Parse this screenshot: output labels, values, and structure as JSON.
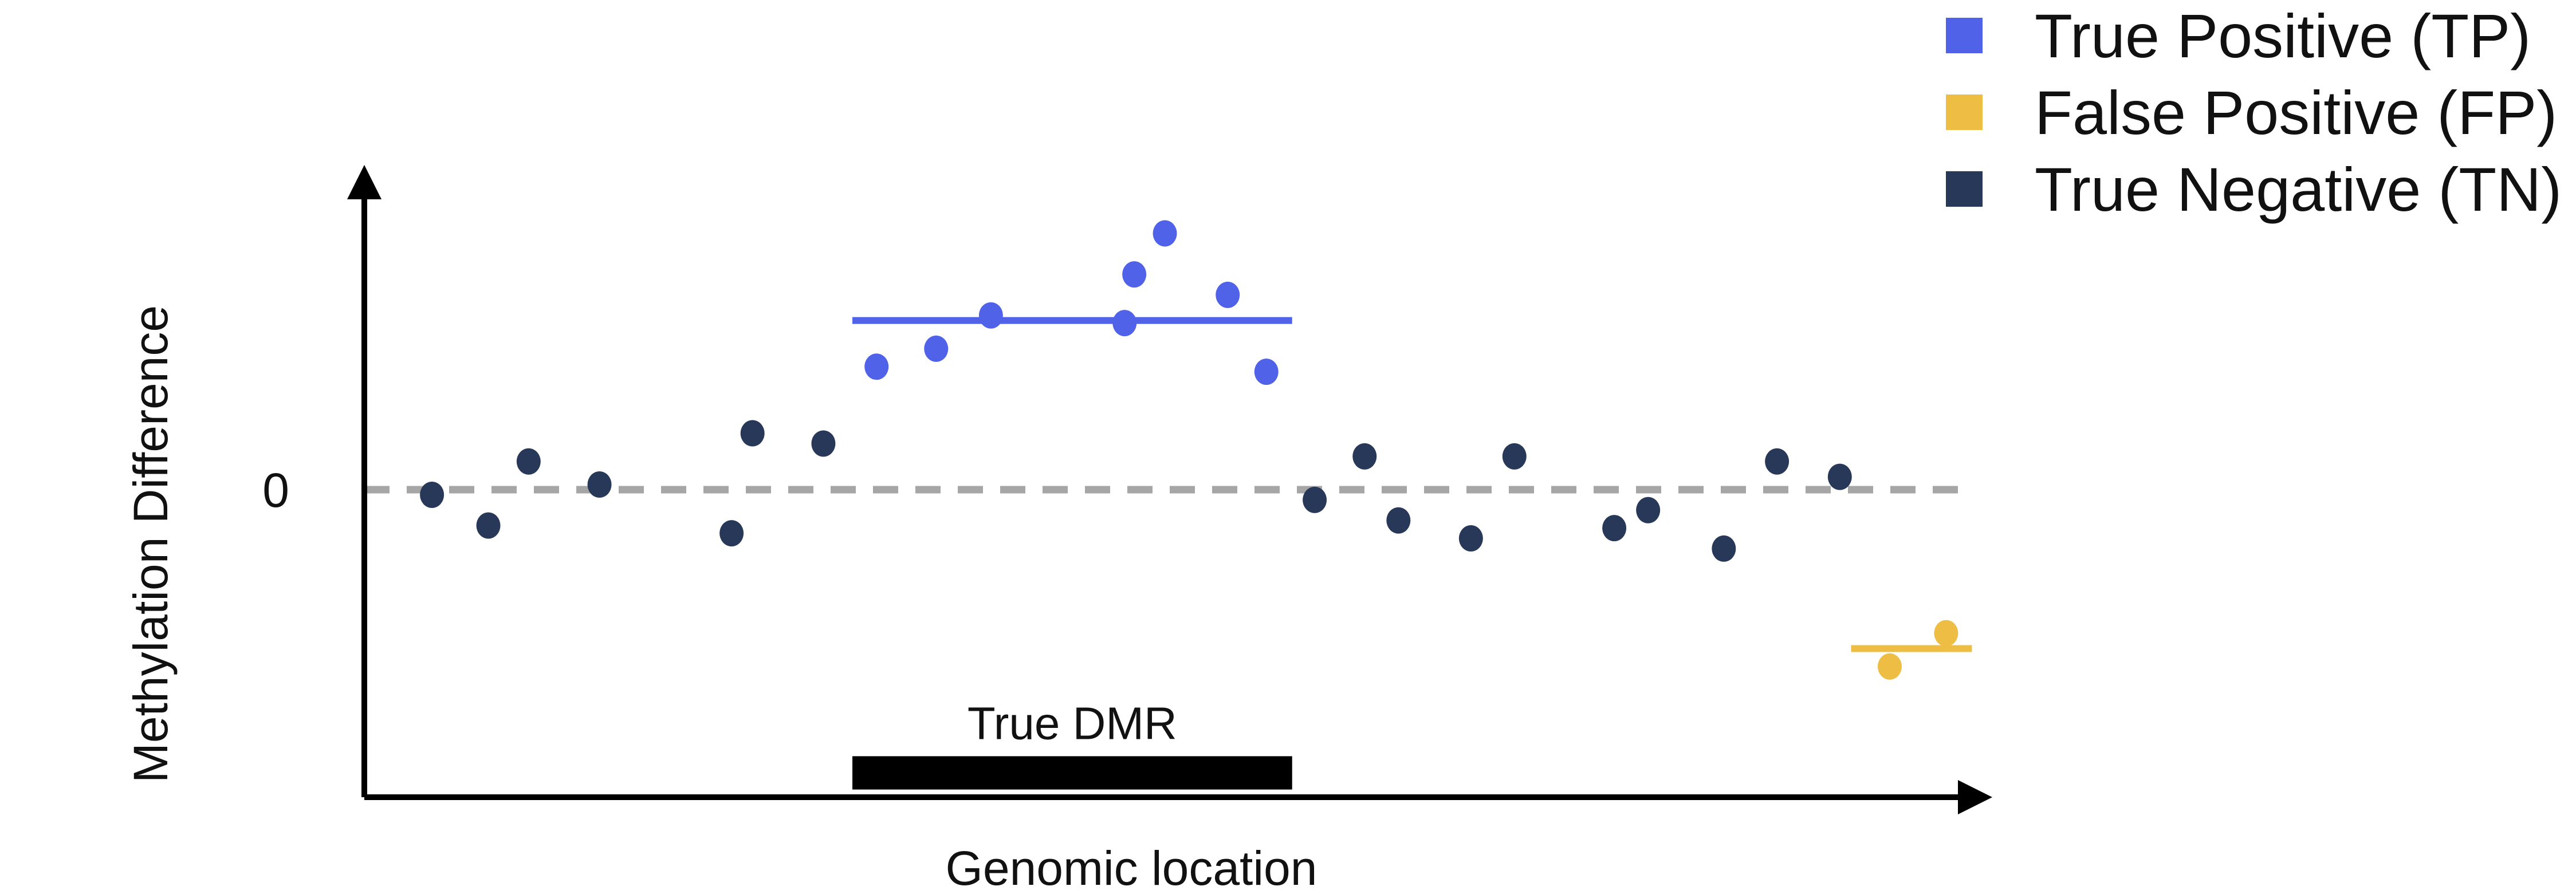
{
  "chart_data": {
    "type": "scatter",
    "title": "",
    "xlabel": "Genomic location",
    "ylabel": "Methylation Difference",
    "xlim": [
      0,
      100
    ],
    "ylim": [
      -6,
      6
    ],
    "yticks": [
      {
        "value": 0,
        "label": "0"
      }
    ],
    "baseline": {
      "y": 0,
      "style": "dashed",
      "color": "#a6a6a6"
    },
    "legend": {
      "position": "top-right",
      "entries": [
        {
          "key": "tp",
          "label": "True Positive (TP)",
          "color": "#4f62e8"
        },
        {
          "key": "fp",
          "label": "False Positive (FP)",
          "color": "#eebd44"
        },
        {
          "key": "tn",
          "label": "True Negative (TN)",
          "color": "#283858"
        }
      ]
    },
    "series": [
      {
        "name": "True Positive (TP)",
        "key": "tp",
        "color": "#4f62e8",
        "points": [
          {
            "x": 31.8,
            "y": 2.4
          },
          {
            "x": 35.5,
            "y": 2.75
          },
          {
            "x": 38.9,
            "y": 3.4
          },
          {
            "x": 47.2,
            "y": 3.25
          },
          {
            "x": 47.8,
            "y": 4.2
          },
          {
            "x": 49.7,
            "y": 5.0
          },
          {
            "x": 53.6,
            "y": 3.8
          },
          {
            "x": 56.0,
            "y": 2.3
          }
        ]
      },
      {
        "name": "False Positive (FP)",
        "key": "fp",
        "color": "#eebd44",
        "points": [
          {
            "x": 94.7,
            "y": -3.45
          },
          {
            "x": 98.2,
            "y": -2.8
          }
        ]
      },
      {
        "name": "True Negative (TN)",
        "key": "tn",
        "color": "#283858",
        "points": [
          {
            "x": 4.2,
            "y": -0.1
          },
          {
            "x": 7.7,
            "y": -0.7
          },
          {
            "x": 10.2,
            "y": 0.55
          },
          {
            "x": 14.6,
            "y": 0.1
          },
          {
            "x": 22.8,
            "y": -0.85
          },
          {
            "x": 24.1,
            "y": 1.1
          },
          {
            "x": 28.5,
            "y": 0.9
          },
          {
            "x": 59.0,
            "y": -0.2
          },
          {
            "x": 62.1,
            "y": 0.65
          },
          {
            "x": 64.2,
            "y": -0.6
          },
          {
            "x": 68.7,
            "y": -0.95
          },
          {
            "x": 71.4,
            "y": 0.65
          },
          {
            "x": 77.6,
            "y": -0.75
          },
          {
            "x": 79.7,
            "y": -0.4
          },
          {
            "x": 84.4,
            "y": -1.15
          },
          {
            "x": 87.7,
            "y": 0.55
          },
          {
            "x": 91.6,
            "y": 0.25
          }
        ]
      }
    ],
    "segments": [
      {
        "name": "TP region mean",
        "key": "tp",
        "color": "#4f62e8",
        "x0": 30.3,
        "x1": 57.6,
        "y": 3.3
      },
      {
        "name": "FP region mean",
        "key": "fp",
        "color": "#eebd44",
        "x0": 92.3,
        "x1": 99.8,
        "y": -3.1
      }
    ],
    "annotations": [
      {
        "label": "True DMR",
        "type": "bar",
        "color": "#000000",
        "x0": 30.3,
        "x1": 57.6,
        "y0": -5.85,
        "y1": -5.2
      }
    ]
  }
}
